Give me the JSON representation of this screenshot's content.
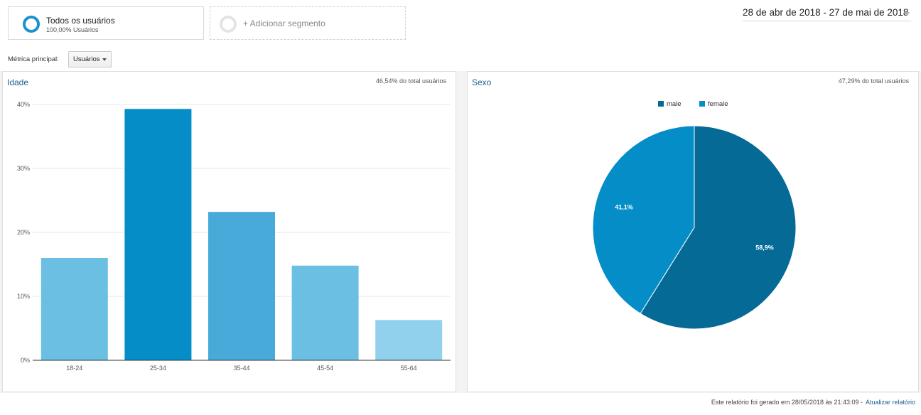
{
  "segments": {
    "active": {
      "title": "Todos os usuários",
      "subtitle": "100,00% Usuários",
      "icon": "segment-ring-icon"
    },
    "add_label": "+ Adicionar segmento"
  },
  "date_range": "28 de abr de 2018 - 27 de mai de 2018",
  "metric": {
    "label": "Métrica principal:",
    "selected": "Usuários"
  },
  "colors": {
    "accent": "#058dc7",
    "pie_male": "#056a96",
    "pie_female": "#058dc7",
    "bar_light": "#6bbfe3",
    "bar_mid": "#47aad8",
    "bar_dark": "#058dc7",
    "bar_lightest": "#91d1ed"
  },
  "age_panel": {
    "title": "Idade",
    "pct_total": "46,54% do total usuários"
  },
  "sex_panel": {
    "title": "Sexo",
    "pct_total": "47,29% do total usuários"
  },
  "footer": {
    "text": "Este relatório foi gerado em 28/05/2018 às 21:43:09 -",
    "link": "Atualizar relatório"
  },
  "chart_data": [
    {
      "type": "bar",
      "title": "Idade",
      "categories": [
        "18-24",
        "25-34",
        "35-44",
        "45-54",
        "55-64"
      ],
      "values": [
        16.0,
        39.3,
        23.2,
        14.8,
        6.3
      ],
      "yticks": [
        "0%",
        "10%",
        "20%",
        "30%",
        "40%"
      ],
      "ylim": [
        0,
        40
      ],
      "grid": true
    },
    {
      "type": "pie",
      "title": "Sexo",
      "labels": [
        "male",
        "female"
      ],
      "values": [
        58.9,
        41.1
      ],
      "value_labels": [
        "58,9%",
        "41,1%"
      ],
      "legend": "top"
    }
  ]
}
